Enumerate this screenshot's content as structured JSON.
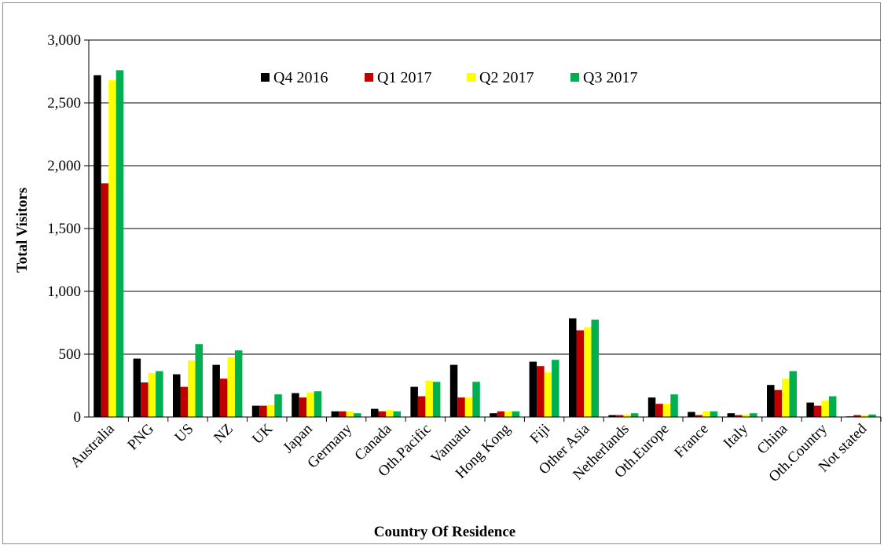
{
  "chart_data": {
    "type": "bar",
    "title": "",
    "xlabel": "Country Of Residence",
    "ylabel": "Total Visitors",
    "ylim": [
      0,
      3000
    ],
    "yticks": [
      0,
      500,
      1000,
      1500,
      2000,
      2500,
      3000
    ],
    "ytick_labels": [
      "0",
      "500",
      "1,000",
      "1,500",
      "2,000",
      "2,500",
      "3,000"
    ],
    "grid": true,
    "legend_position": "top",
    "categories": [
      "Australia",
      "PNG",
      "US",
      "NZ",
      "UK",
      "Japan",
      "Germany",
      "Canada",
      "Oth.Pacific",
      "Vanuatu",
      "Hong Kong",
      "Fiji",
      "Other Asia",
      "Netherlands",
      "Oth.Europe",
      "France",
      "Italy",
      "China",
      "Oth.Country",
      "Not stated"
    ],
    "series": [
      {
        "name": "Q4 2016",
        "color": "#000000",
        "values": [
          2720,
          465,
          340,
          415,
          90,
          190,
          45,
          65,
          240,
          415,
          30,
          440,
          785,
          15,
          155,
          40,
          30,
          255,
          115,
          5
        ]
      },
      {
        "name": "Q1 2017",
        "color": "#c00000",
        "values": [
          1860,
          275,
          240,
          305,
          90,
          155,
          45,
          45,
          165,
          155,
          45,
          405,
          690,
          15,
          105,
          15,
          15,
          215,
          90,
          15
        ]
      },
      {
        "name": "Q2 2017",
        "color": "#ffff00",
        "values": [
          2680,
          350,
          450,
          475,
          95,
          195,
          45,
          55,
          290,
          155,
          45,
          355,
          715,
          20,
          105,
          45,
          20,
          305,
          130,
          15
        ]
      },
      {
        "name": "Q3 2017",
        "color": "#00b050",
        "values": [
          2760,
          365,
          580,
          530,
          180,
          205,
          30,
          45,
          280,
          280,
          45,
          455,
          775,
          30,
          180,
          45,
          30,
          365,
          165,
          20
        ]
      }
    ]
  }
}
